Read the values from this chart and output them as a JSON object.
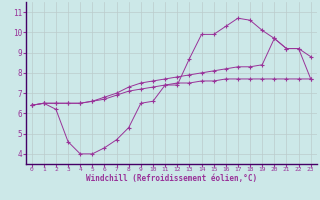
{
  "xlabel": "Windchill (Refroidissement éolien,°C)",
  "bg_color": "#cce8e8",
  "line_color": "#993399",
  "grid_color": "#bbcccc",
  "xlim": [
    -0.5,
    23.5
  ],
  "ylim": [
    3.5,
    11.5
  ],
  "xticks": [
    0,
    1,
    2,
    3,
    4,
    5,
    6,
    7,
    8,
    9,
    10,
    11,
    12,
    13,
    14,
    15,
    16,
    17,
    18,
    19,
    20,
    21,
    22,
    23
  ],
  "yticks": [
    4,
    5,
    6,
    7,
    8,
    9,
    10,
    11
  ],
  "curve1_x": [
    0,
    1,
    2,
    3,
    4,
    5,
    6,
    7,
    8,
    9,
    10,
    11,
    12,
    13,
    14,
    15,
    16,
    17,
    18,
    19,
    20,
    21,
    22,
    23
  ],
  "curve1_y": [
    6.4,
    6.5,
    6.2,
    4.6,
    4.0,
    4.0,
    4.3,
    4.7,
    5.3,
    6.5,
    6.6,
    7.4,
    7.4,
    8.7,
    9.9,
    9.9,
    10.3,
    10.7,
    10.6,
    10.1,
    9.7,
    9.2,
    9.2,
    8.8
  ],
  "curve2_x": [
    0,
    1,
    2,
    3,
    4,
    5,
    6,
    7,
    8,
    9,
    10,
    11,
    12,
    13,
    14,
    15,
    16,
    17,
    18,
    19,
    20,
    21,
    22,
    23
  ],
  "curve2_y": [
    6.4,
    6.5,
    6.5,
    6.5,
    6.5,
    6.6,
    6.8,
    7.0,
    7.3,
    7.5,
    7.6,
    7.7,
    7.8,
    7.9,
    8.0,
    8.1,
    8.2,
    8.3,
    8.3,
    8.4,
    9.7,
    9.2,
    9.2,
    7.7
  ],
  "curve3_x": [
    0,
    1,
    2,
    3,
    4,
    5,
    6,
    7,
    8,
    9,
    10,
    11,
    12,
    13,
    14,
    15,
    16,
    17,
    18,
    19,
    20,
    21,
    22,
    23
  ],
  "curve3_y": [
    6.4,
    6.5,
    6.5,
    6.5,
    6.5,
    6.6,
    6.7,
    6.9,
    7.1,
    7.2,
    7.3,
    7.4,
    7.5,
    7.5,
    7.6,
    7.6,
    7.7,
    7.7,
    7.7,
    7.7,
    7.7,
    7.7,
    7.7,
    7.7
  ]
}
